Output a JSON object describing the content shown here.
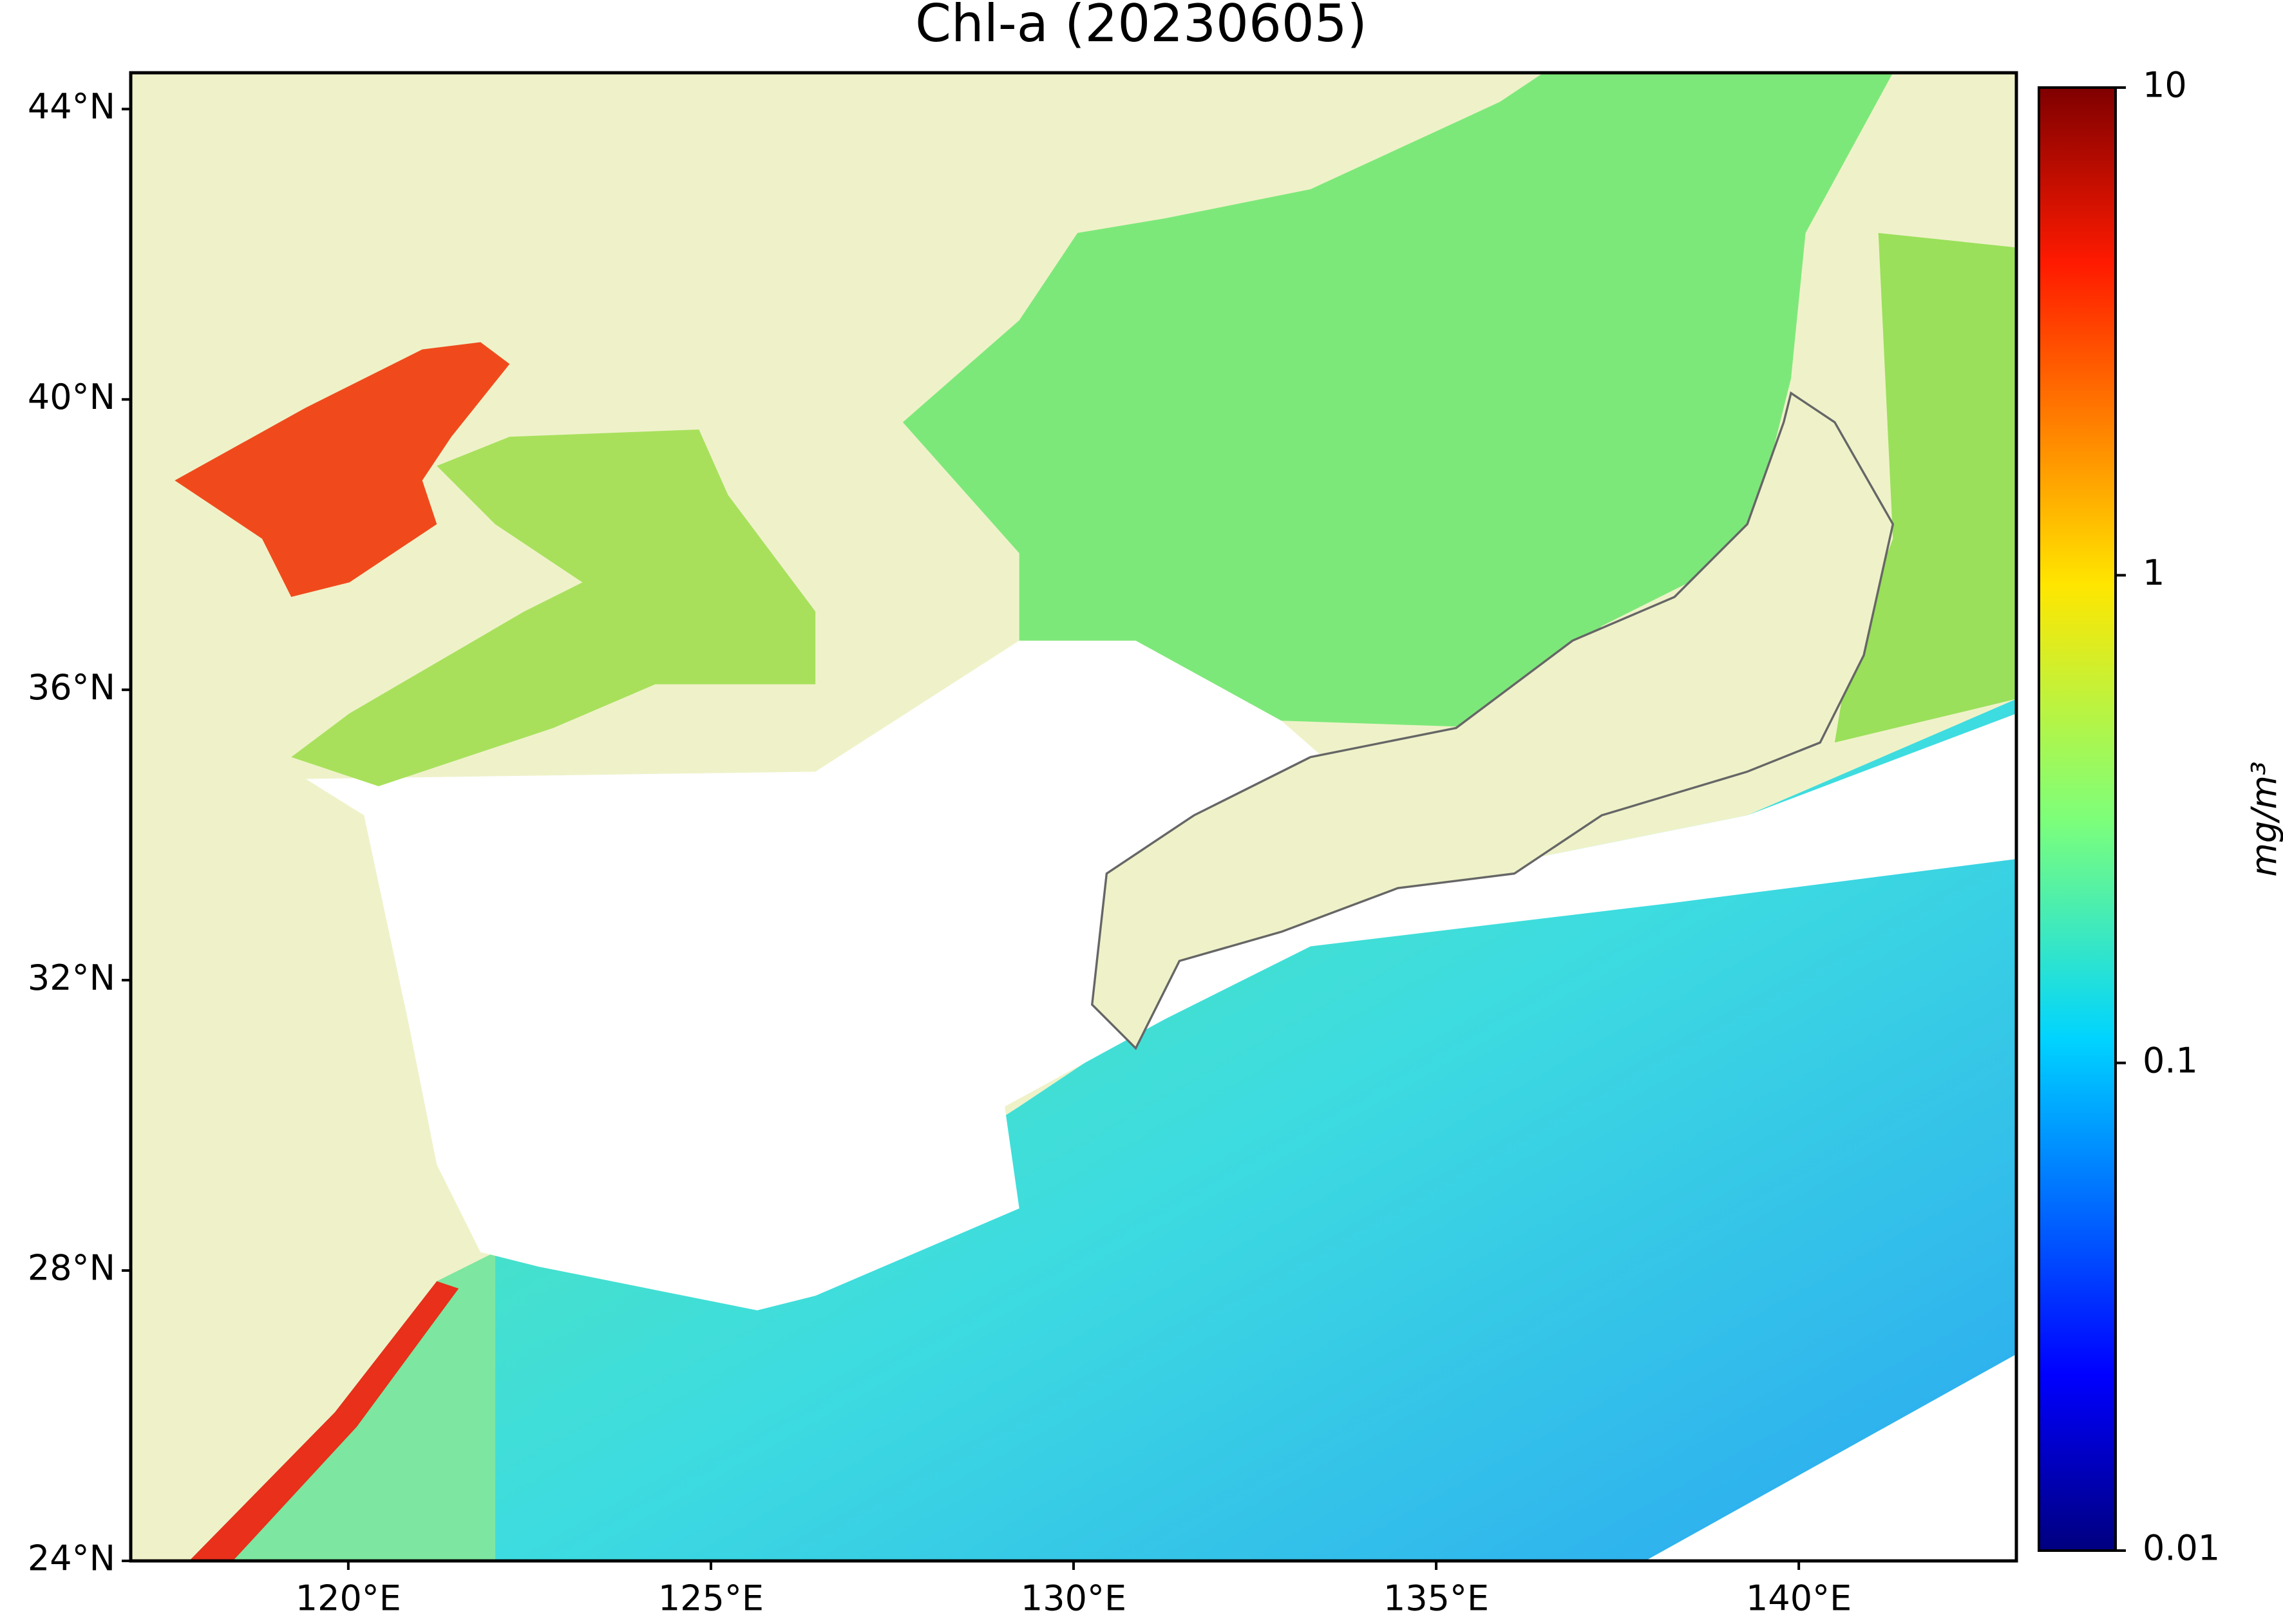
{
  "chart_data": {
    "type": "map",
    "title": "Chl-a (20230605)",
    "xlim": [
      117,
      143
    ],
    "ylim": [
      24,
      44.5
    ],
    "xticks": [
      {
        "value": 120,
        "label": "120°E"
      },
      {
        "value": 125,
        "label": "125°E"
      },
      {
        "value": 130,
        "label": "130°E"
      },
      {
        "value": 135,
        "label": "135°E"
      },
      {
        "value": 140,
        "label": "140°E"
      }
    ],
    "yticks": [
      {
        "value": 24,
        "label": "24°N"
      },
      {
        "value": 28,
        "label": "28°N"
      },
      {
        "value": 32,
        "label": "32°N"
      },
      {
        "value": 36,
        "label": "36°N"
      },
      {
        "value": 40,
        "label": "40°N"
      },
      {
        "value": 44,
        "label": "44°N"
      }
    ],
    "colorbar": {
      "label": "mg/m³",
      "lim": [
        0.01,
        10
      ],
      "ticks": [
        0.01,
        0.1,
        1,
        10
      ],
      "log": true
    }
  }
}
